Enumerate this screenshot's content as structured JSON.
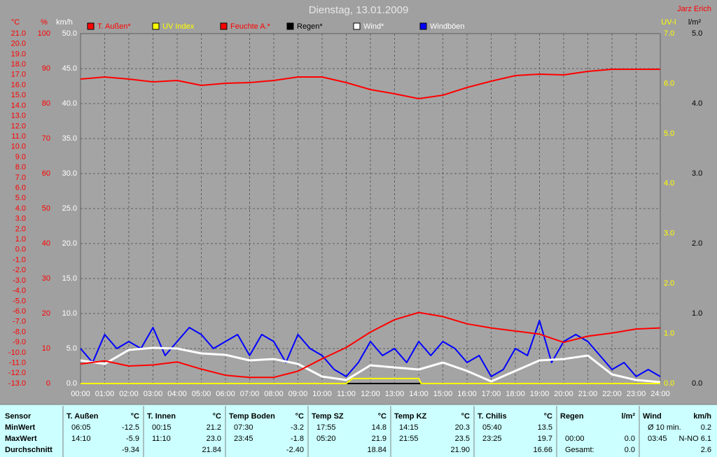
{
  "chart_data": {
    "type": "line",
    "title": "Dienstag, 13.01.2009",
    "author": "Jarz Erich",
    "grid": true,
    "xlim": [
      0,
      24
    ],
    "xticks": [
      {
        "value": 0,
        "label": "00:00"
      },
      {
        "value": 1,
        "label": "01:00"
      },
      {
        "value": 2,
        "label": "02:00"
      },
      {
        "value": 3,
        "label": "03:00"
      },
      {
        "value": 4,
        "label": "04:00"
      },
      {
        "value": 5,
        "label": "05:00"
      },
      {
        "value": 6,
        "label": "06:00"
      },
      {
        "value": 7,
        "label": "07:00"
      },
      {
        "value": 8,
        "label": "08:00"
      },
      {
        "value": 9,
        "label": "09:00"
      },
      {
        "value": 10,
        "label": "10:00"
      },
      {
        "value": 11,
        "label": "11:00"
      },
      {
        "value": 12,
        "label": "12:00"
      },
      {
        "value": 13,
        "label": "13:00"
      },
      {
        "value": 14,
        "label": "14:00"
      },
      {
        "value": 15,
        "label": "15:00"
      },
      {
        "value": 16,
        "label": "16:00"
      },
      {
        "value": 17,
        "label": "17:00"
      },
      {
        "value": 18,
        "label": "18:00"
      },
      {
        "value": 19,
        "label": "19:00"
      },
      {
        "value": 20,
        "label": "20:00"
      },
      {
        "value": 21,
        "label": "21:00"
      },
      {
        "value": 22,
        "label": "22:00"
      },
      {
        "value": 23,
        "label": "23:00"
      },
      {
        "value": 24,
        "label": "24:00"
      }
    ],
    "axes": [
      {
        "label": "°C",
        "color": "#ff0000",
        "lim": [
          -13,
          21
        ],
        "ticks": [
          {
            "value": 21,
            "label": "21.0"
          },
          {
            "value": 20,
            "label": "20.0"
          },
          {
            "value": 19,
            "label": "19.0"
          },
          {
            "value": 18,
            "label": "18.0"
          },
          {
            "value": 17,
            "label": "17.0"
          },
          {
            "value": 16,
            "label": "16.0"
          },
          {
            "value": 15,
            "label": "15.0"
          },
          {
            "value": 14,
            "label": "14.0"
          },
          {
            "value": 13,
            "label": "13.0"
          },
          {
            "value": 12,
            "label": "12.0"
          },
          {
            "value": 11,
            "label": "11.0"
          },
          {
            "value": 10,
            "label": "10.0"
          },
          {
            "value": 9,
            "label": "9.0"
          },
          {
            "value": 8,
            "label": "8.0"
          },
          {
            "value": 7,
            "label": "7.0"
          },
          {
            "value": 6,
            "label": "6.0"
          },
          {
            "value": 5,
            "label": "5.0"
          },
          {
            "value": 4,
            "label": "4.0"
          },
          {
            "value": 3,
            "label": "3.0"
          },
          {
            "value": 2,
            "label": "2.0"
          },
          {
            "value": 1,
            "label": "1.0"
          },
          {
            "value": 0,
            "label": "0.0"
          },
          {
            "value": -1,
            "label": "-1.0"
          },
          {
            "value": -2,
            "label": "-2.0"
          },
          {
            "value": -3,
            "label": "-3.0"
          },
          {
            "value": -4,
            "label": "-4.0"
          },
          {
            "value": -5,
            "label": "-5.0"
          },
          {
            "value": -6,
            "label": "-6.0"
          },
          {
            "value": -7,
            "label": "-7.0"
          },
          {
            "value": -8,
            "label": "-8.0"
          },
          {
            "value": -9,
            "label": "-9.0"
          },
          {
            "value": -10,
            "label": "-10.0"
          },
          {
            "value": -11,
            "label": "-11.0"
          },
          {
            "value": -12,
            "label": "-12.0"
          },
          {
            "value": -13,
            "label": "-13.0"
          }
        ]
      },
      {
        "label": "%",
        "color": "#ff0000",
        "lim": [
          0,
          100
        ],
        "ticks": [
          0,
          10,
          20,
          30,
          40,
          50,
          60,
          70,
          80,
          90,
          100
        ]
      },
      {
        "label": "km/h",
        "color": "#ffffff",
        "lim": [
          0,
          50
        ],
        "ticks": [
          {
            "value": 0,
            "label": "0.0"
          },
          {
            "value": 5,
            "label": "5.0"
          },
          {
            "value": 10,
            "label": "10.0"
          },
          {
            "value": 15,
            "label": "15.0"
          },
          {
            "value": 20,
            "label": "20.0"
          },
          {
            "value": 25,
            "label": "25.0"
          },
          {
            "value": 30,
            "label": "30.0"
          },
          {
            "value": 35,
            "label": "35.0"
          },
          {
            "value": 40,
            "label": "40.0"
          },
          {
            "value": 45,
            "label": "45.0"
          },
          {
            "value": 50,
            "label": "50.0"
          }
        ]
      },
      {
        "label": "UV-I",
        "color": "#ffff00",
        "lim": [
          0,
          7
        ],
        "ticks": [
          {
            "value": 0,
            "label": "0.0"
          },
          {
            "value": 1,
            "label": "1.0"
          },
          {
            "value": 2,
            "label": "2.0"
          },
          {
            "value": 3,
            "label": "3.0"
          },
          {
            "value": 4,
            "label": "4.0"
          },
          {
            "value": 5,
            "label": "5.0"
          },
          {
            "value": 6,
            "label": "6.0"
          },
          {
            "value": 7,
            "label": "7.0"
          }
        ]
      },
      {
        "label": "l/m²",
        "color": "#000000",
        "lim": [
          0,
          5
        ],
        "ticks": [
          {
            "value": 0,
            "label": "0.0"
          },
          {
            "value": 1,
            "label": "1.0"
          },
          {
            "value": 2,
            "label": "2.0"
          },
          {
            "value": 3,
            "label": "3.0"
          },
          {
            "value": 4,
            "label": "4.0"
          },
          {
            "value": 5,
            "label": "5.0"
          }
        ]
      }
    ],
    "series": [
      {
        "name": "T. Außen*",
        "color": "#ff0000",
        "legend_text_color": "#ff0000",
        "axis": "°C",
        "x": [
          0,
          1,
          2,
          3,
          4,
          5,
          6,
          7,
          8,
          9,
          10,
          11,
          12,
          13,
          14,
          15,
          16,
          17,
          18,
          19,
          20,
          21,
          22,
          23,
          24
        ],
        "values": [
          -11.1,
          -10.8,
          -11.3,
          -11.2,
          -10.9,
          -11.6,
          -12.2,
          -12.4,
          -12.4,
          -11.8,
          -10.6,
          -9.5,
          -8.0,
          -6.8,
          -6.1,
          -6.5,
          -7.2,
          -7.6,
          -7.9,
          -8.2,
          -9.0,
          -8.4,
          -8.1,
          -7.7,
          -7.6
        ]
      },
      {
        "name": "UV Index",
        "color": "#ffff00",
        "legend_text_color": "#ffff00",
        "axis": "UV-I",
        "x": [
          0,
          11,
          11.25,
          14,
          14.1,
          24
        ],
        "values": [
          0,
          0,
          0.1,
          0.1,
          0,
          0
        ]
      },
      {
        "name": "Feuchte A.*",
        "color": "#ff0000",
        "legend_text_color": "#ff0000",
        "axis": "%",
        "x": [
          0,
          1,
          2,
          3,
          4,
          5,
          6,
          7,
          8,
          9,
          10,
          11,
          12,
          13,
          14,
          15,
          16,
          17,
          18,
          19,
          20,
          21,
          22,
          23,
          24
        ],
        "values": [
          87,
          87.6,
          87,
          86.2,
          86.6,
          85.2,
          85.8,
          86,
          86.6,
          87.6,
          87.6,
          86,
          84,
          82.8,
          81.4,
          82.4,
          84.6,
          86.4,
          88,
          88.4,
          88.2,
          89.2,
          89.8,
          89.8,
          89.8
        ]
      },
      {
        "name": "Regen*",
        "color": "#000000",
        "legend_text_color": "#000000",
        "axis": "l/m²",
        "x": [
          0,
          24
        ],
        "values": [
          0,
          0
        ]
      },
      {
        "name": "Wind*",
        "color": "#ffffff",
        "legend_text_color": "#ffffff",
        "axis": "km/h",
        "x": [
          0,
          1,
          2,
          3,
          4,
          5,
          6,
          7,
          8,
          9,
          10,
          11,
          12,
          13,
          14,
          15,
          16,
          17,
          18,
          19,
          20,
          21,
          22,
          23,
          24
        ],
        "values": [
          3.3,
          2.8,
          4.8,
          5.1,
          5.0,
          4.3,
          4.1,
          3.3,
          3.5,
          2.8,
          1.0,
          0.5,
          2.6,
          2.3,
          2.0,
          3.0,
          1.8,
          0.3,
          1.8,
          3.3,
          3.5,
          4.0,
          1.3,
          0.5,
          0.2
        ]
      },
      {
        "name": "Windböen",
        "color": "#0000ff",
        "legend_text_color": "#ffffff",
        "axis": "km/h",
        "x": [
          0,
          0.5,
          1,
          1.5,
          2,
          2.5,
          3,
          3.5,
          4,
          4.5,
          5,
          5.5,
          6,
          6.5,
          7,
          7.5,
          8,
          8.5,
          9,
          9.5,
          10,
          10.5,
          11,
          11.5,
          12,
          12.5,
          13,
          13.5,
          14,
          14.5,
          15,
          15.5,
          16,
          16.5,
          17,
          17.5,
          18,
          18.5,
          19,
          19.5,
          20,
          20.5,
          21,
          21.5,
          22,
          22.5,
          23,
          23.5,
          24
        ],
        "values": [
          5,
          3,
          7,
          5,
          6,
          5,
          8,
          4,
          6,
          8,
          7,
          5,
          6,
          7,
          4,
          7,
          6,
          3,
          7,
          5,
          4,
          2,
          1,
          3,
          6,
          4,
          5,
          3,
          6,
          4,
          6,
          5,
          3,
          4,
          1,
          2,
          5,
          4,
          9,
          3,
          6,
          7,
          6,
          4,
          2,
          3,
          1,
          2,
          1
        ]
      }
    ]
  },
  "table": {
    "row_labels": [
      "Sensor",
      "MinWert",
      "MaxWert",
      "Durchschnitt"
    ],
    "columns": [
      {
        "name": "T. Außen",
        "unit": "°C",
        "min": {
          "time": "06:05",
          "value": "-12.5"
        },
        "max": {
          "time": "14:10",
          "value": "-5.9"
        },
        "avg": {
          "value": "-9.34"
        }
      },
      {
        "name": "T. Innen",
        "unit": "°C",
        "min": {
          "time": "00:15",
          "value": "21.2"
        },
        "max": {
          "time": "11:10",
          "value": "23.0"
        },
        "avg": {
          "value": "21.84"
        }
      },
      {
        "name": "Temp Boden",
        "unit": "°C",
        "min": {
          "time": "07:30",
          "value": "-3.2"
        },
        "max": {
          "time": "23:45",
          "value": "-1.8"
        },
        "avg": {
          "value": "-2.40"
        }
      },
      {
        "name": "Temp SZ",
        "unit": "°C",
        "min": {
          "time": "17:55",
          "value": "14.8"
        },
        "max": {
          "time": "05:20",
          "value": "21.9"
        },
        "avg": {
          "value": "18.84"
        }
      },
      {
        "name": "Temp KZ",
        "unit": "°C",
        "min": {
          "time": "14:15",
          "value": "20.3"
        },
        "max": {
          "time": "21:55",
          "value": "23.5"
        },
        "avg": {
          "value": "21.90"
        }
      },
      {
        "name": "T. Chilis",
        "unit": "°C",
        "min": {
          "time": "05:40",
          "value": "13.5"
        },
        "max": {
          "time": "23:25",
          "value": "19.7"
        },
        "avg": {
          "value": "16.66"
        }
      },
      {
        "name": "Regen",
        "unit": "l/m²",
        "max": {
          "time": "00:00",
          "value": "0.0"
        },
        "avg": {
          "time": "Gesamt:",
          "value": "0.0"
        }
      },
      {
        "name": "Wind",
        "unit": "km/h",
        "min": {
          "time": "Ø 10 min.",
          "value": "0.2"
        },
        "max": {
          "time": "03:45",
          "value": "N-NO 6.1"
        },
        "avg": {
          "value": "2.6"
        }
      }
    ]
  }
}
